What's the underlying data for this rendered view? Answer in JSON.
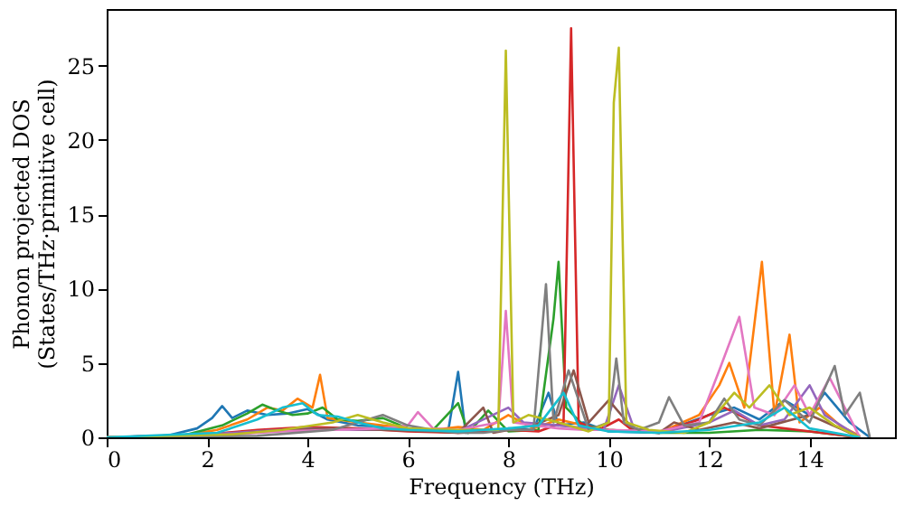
{
  "chart_data": {
    "type": "line",
    "xlabel": "Frequency (THz)",
    "ylabel": "Phonon projected DOS\n(States/THz·primitive cell)",
    "xlim": [
      0,
      15.7
    ],
    "ylim": [
      0,
      28.8
    ],
    "xticks": [
      0,
      2,
      4,
      6,
      8,
      10,
      12,
      14
    ],
    "yticks": [
      0,
      5,
      10,
      15,
      20,
      25
    ],
    "grid": false,
    "legend": false,
    "marker": "none",
    "line_style": "solid",
    "series": [
      {
        "color": "#1f77b4",
        "x": [
          0,
          1.2,
          1.8,
          2.1,
          2.3,
          2.5,
          2.8,
          3.2,
          3.6,
          4.0,
          4.4,
          5.0,
          5.6,
          6.2,
          6.8,
          7.0,
          7.15,
          7.6,
          8.0,
          8.5,
          8.8,
          9.0,
          9.5,
          10.0,
          11.0,
          12.0,
          12.5,
          13.0,
          13.5,
          14.0,
          14.3,
          14.8,
          15.2
        ],
        "values": [
          0,
          0.1,
          0.6,
          1.3,
          2.1,
          1.3,
          1.8,
          1.5,
          1.6,
          1.9,
          1.2,
          0.8,
          0.7,
          0.5,
          0.4,
          4.4,
          0.3,
          0.4,
          0.6,
          0.5,
          3.0,
          0.8,
          1.0,
          0.4,
          0.3,
          1.5,
          2.0,
          1.2,
          2.5,
          1.5,
          3.0,
          1.0,
          0
        ]
      },
      {
        "color": "#ff7f0e",
        "x": [
          0,
          1.5,
          2.2,
          2.8,
          3.2,
          3.5,
          3.8,
          4.1,
          4.25,
          4.4,
          5.0,
          5.5,
          6.0,
          6.5,
          7.0,
          7.5,
          8.0,
          8.5,
          9.0,
          9.5,
          10.0,
          11.0,
          11.8,
          12.2,
          12.4,
          12.7,
          13.05,
          13.3,
          13.6,
          13.8,
          14.2,
          14.6,
          15.0
        ],
        "values": [
          0,
          0.1,
          0.5,
          1.2,
          2.0,
          1.8,
          2.6,
          2.0,
          4.2,
          1.3,
          1.0,
          0.8,
          0.6,
          0.5,
          0.7,
          0.5,
          1.5,
          0.6,
          1.2,
          0.8,
          0.5,
          0.3,
          1.5,
          3.5,
          5.0,
          2.0,
          11.8,
          1.5,
          6.9,
          1.0,
          2.0,
          0.8,
          0.1
        ]
      },
      {
        "color": "#2ca02c",
        "x": [
          0,
          1.5,
          2.3,
          2.8,
          3.1,
          3.4,
          3.7,
          4.0,
          4.3,
          4.6,
          5.0,
          5.5,
          6.0,
          6.5,
          7.0,
          7.2,
          7.6,
          8.0,
          8.6,
          8.9,
          9.0,
          9.15,
          9.5,
          10.0,
          11.0,
          12.0,
          13.0,
          14.0,
          15.0
        ],
        "values": [
          0,
          0.1,
          0.8,
          1.6,
          2.2,
          1.8,
          1.5,
          1.6,
          2.0,
          1.2,
          1.1,
          1.3,
          0.6,
          0.5,
          2.3,
          0.3,
          1.8,
          0.4,
          0.5,
          8.0,
          11.8,
          2.0,
          0.8,
          0.5,
          0.3,
          0.3,
          0.5,
          0.4,
          0
        ]
      },
      {
        "color": "#d62728",
        "x": [
          0,
          2.0,
          3.0,
          4.0,
          5.0,
          6.0,
          7.0,
          8.0,
          8.6,
          9.1,
          9.25,
          9.4,
          9.8,
          10.2,
          10.5,
          11.0,
          11.8,
          12.3,
          12.6,
          13.0,
          13.5,
          14.0,
          15.0
        ],
        "values": [
          0,
          0.2,
          0.5,
          0.7,
          0.6,
          0.4,
          0.3,
          0.5,
          0.4,
          1.0,
          27.5,
          1.0,
          0.5,
          1.2,
          0.4,
          0.3,
          1.2,
          2.0,
          1.5,
          0.8,
          0.6,
          0.4,
          0
        ]
      },
      {
        "color": "#9467bd",
        "x": [
          0,
          2.0,
          3.0,
          4.0,
          5.0,
          6.0,
          7.0,
          8.0,
          8.3,
          9.0,
          9.9,
          10.2,
          10.5,
          11.0,
          12.0,
          12.5,
          13.0,
          13.5,
          14.0,
          14.3,
          15.0
        ],
        "values": [
          0,
          0.2,
          0.4,
          0.6,
          0.5,
          0.5,
          0.4,
          2.0,
          1.0,
          0.8,
          0.5,
          3.5,
          0.6,
          0.3,
          1.0,
          1.8,
          0.8,
          1.2,
          3.5,
          1.5,
          0
        ]
      },
      {
        "color": "#8c564b",
        "x": [
          0,
          2.5,
          3.5,
          4.5,
          5.5,
          6.5,
          7.0,
          7.5,
          7.7,
          8.5,
          9.0,
          9.3,
          9.6,
          10.0,
          10.5,
          11.0,
          11.3,
          11.8,
          12.5,
          13.0,
          14.0,
          15.0
        ],
        "values": [
          0,
          0.2,
          0.5,
          0.6,
          0.5,
          0.4,
          0.3,
          2.0,
          0.3,
          0.8,
          1.5,
          4.5,
          1.0,
          2.5,
          0.5,
          0.3,
          1.0,
          0.5,
          1.0,
          0.6,
          1.5,
          0
        ]
      },
      {
        "color": "#e377c2",
        "x": [
          0,
          2.5,
          3.5,
          4.5,
          5.5,
          6.0,
          6.2,
          6.5,
          7.0,
          7.8,
          7.95,
          8.1,
          8.5,
          9.0,
          9.5,
          10.0,
          11.0,
          11.8,
          12.2,
          12.6,
          12.9,
          13.3,
          13.7,
          14.0,
          14.4,
          15.0
        ],
        "values": [
          0,
          0.2,
          0.4,
          0.5,
          0.6,
          0.8,
          1.7,
          0.6,
          0.5,
          1.0,
          8.5,
          1.0,
          0.8,
          0.6,
          0.5,
          0.5,
          0.4,
          1.0,
          4.5,
          8.1,
          2.0,
          1.5,
          3.5,
          1.5,
          4.0,
          0
        ]
      },
      {
        "color": "#7f7f7f",
        "x": [
          0,
          3.0,
          4.5,
          5.5,
          6.0,
          6.5,
          7.0,
          7.5,
          8.0,
          8.5,
          8.75,
          8.9,
          9.2,
          9.6,
          10.0,
          10.15,
          10.3,
          10.6,
          11.0,
          11.2,
          11.5,
          12.0,
          12.3,
          12.6,
          13.0,
          13.5,
          14.0,
          14.5,
          14.7,
          15.0,
          15.2
        ],
        "values": [
          0,
          0.1,
          0.5,
          1.5,
          0.8,
          0.5,
          0.3,
          0.3,
          0.5,
          0.5,
          10.3,
          1.0,
          4.5,
          0.5,
          1.0,
          5.3,
          1.0,
          0.5,
          1.0,
          2.7,
          0.8,
          1.0,
          2.6,
          1.2,
          0.8,
          2.5,
          1.0,
          4.8,
          1.5,
          3.0,
          0
        ]
      },
      {
        "color": "#bcbd22",
        "x": [
          0,
          2.5,
          3.5,
          4.5,
          5.0,
          5.5,
          6.0,
          7.0,
          7.8,
          7.95,
          8.1,
          8.4,
          9.0,
          9.6,
          10.0,
          10.1,
          10.2,
          10.35,
          10.8,
          11.5,
          12.0,
          12.5,
          12.8,
          13.2,
          13.6,
          14.0,
          14.5,
          15.0
        ],
        "values": [
          0,
          0.2,
          0.5,
          1.0,
          1.5,
          1.0,
          0.6,
          0.5,
          0.5,
          26,
          1.0,
          1.5,
          1.0,
          0.4,
          1.0,
          22.5,
          26.2,
          1.0,
          0.5,
          0.3,
          1.0,
          3.0,
          2.0,
          3.5,
          1.5,
          2.0,
          0.8,
          0
        ]
      },
      {
        "color": "#17becf",
        "x": [
          0,
          2.2,
          3.0,
          3.5,
          3.9,
          4.2,
          4.6,
          5.0,
          5.5,
          6.0,
          7.0,
          8.0,
          8.6,
          9.1,
          9.4,
          10.0,
          11.0,
          12.0,
          13.0,
          13.5,
          14.0,
          15.0
        ],
        "values": [
          0,
          0.3,
          1.2,
          2.0,
          2.3,
          1.5,
          1.4,
          1.0,
          0.6,
          0.5,
          0.4,
          0.6,
          0.8,
          3.0,
          0.8,
          0.4,
          0.3,
          0.5,
          1.0,
          2.0,
          0.6,
          0
        ]
      }
    ]
  }
}
